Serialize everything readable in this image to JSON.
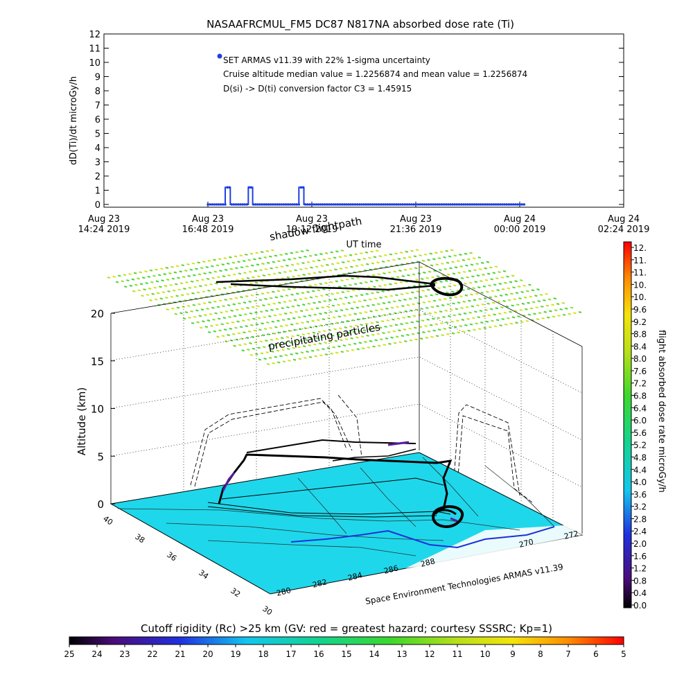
{
  "chart_data": [
    {
      "type": "line",
      "title": "NASAAFRCMUL_FM5 DC87 N817NA absorbed dose rate (Ti)",
      "ylabel": "dD(Ti)/dt microGy/h",
      "xlabel": "UT time",
      "ylim": [
        0,
        12
      ],
      "yticks": [
        "0",
        "1",
        "2",
        "3",
        "4",
        "5",
        "6",
        "7",
        "8",
        "9",
        "10",
        "11",
        "12"
      ],
      "xticks": [
        {
          "line1": "Aug 23",
          "line2": "14:24 2019",
          "t": 0
        },
        {
          "line1": "Aug 23",
          "line2": "16:48 2019",
          "t": 144
        },
        {
          "line1": "Aug 23",
          "line2": "19:12 2019",
          "t": 288
        },
        {
          "line1": "Aug 23",
          "line2": "21:36 2019",
          "t": 432
        },
        {
          "line1": "Aug 24",
          "line2": "00:00 2019",
          "t": 576
        },
        {
          "line1": "Aug 24",
          "line2": "02:24 2019",
          "t": 720
        }
      ],
      "xlim_minutes": [
        0,
        720
      ],
      "series": [
        {
          "name": "SET ARMAS v11.39 with 22% 1-sigma uncertainty",
          "color": "#1f3fe0",
          "points": [
            [
              144,
              0
            ],
            [
              156,
              0
            ],
            [
              168,
              0
            ],
            [
              168,
              1.2
            ],
            [
              175,
              1.2
            ],
            [
              175,
              0
            ],
            [
              200,
              0
            ],
            [
              200,
              1.2
            ],
            [
              206,
              1.2
            ],
            [
              206,
              0
            ],
            [
              270,
              0
            ],
            [
              270,
              1.2
            ],
            [
              277,
              1.2
            ],
            [
              277,
              0
            ],
            [
              320,
              0
            ],
            [
              380,
              0
            ],
            [
              440,
              0
            ],
            [
              500,
              0
            ],
            [
              560,
              0
            ],
            [
              582,
              0
            ]
          ]
        }
      ],
      "annotations": [
        "Cruise altitude median value = 1.2256874 and mean value = 1.2256874",
        "D(si) -> D(ti) conversion factor C3 = 1.45915"
      ]
    },
    {
      "type": "scatter",
      "title": "",
      "zlabel": "Altitude (km)",
      "zticks": [
        "0",
        "5",
        "10",
        "15",
        "20"
      ],
      "lat_ticks": [
        "40",
        "38",
        "36",
        "34",
        "32",
        "30"
      ],
      "lon_ticks": [
        "280",
        "282",
        "284",
        "286",
        "288",
        "270",
        "272"
      ],
      "labels": [
        "shadow flightpath",
        "precipitating particles"
      ],
      "credit": "Space Environment Technologies ARMAS v11.39"
    }
  ],
  "colorbar_right": {
    "label": "flight absorbed dose rate microGy/h",
    "ticks": [
      "0.0",
      "0.4",
      "0.8",
      "1.2",
      "1.6",
      "2.0",
      "2.4",
      "2.8",
      "3.2",
      "3.6",
      "4.0",
      "4.4",
      "4.8",
      "5.2",
      "5.6",
      "6.0",
      "6.4",
      "6.8",
      "7.2",
      "7.6",
      "8.0",
      "8.4",
      "8.8",
      "9.2",
      "9.6",
      "10.",
      "10.",
      "11.",
      "11.",
      "12."
    ],
    "range": [
      0,
      12.2
    ]
  },
  "colorbar_bottom": {
    "title": "Cutoff rigidity (Rc) >25 km (GV: red = greatest hazard; courtesy SSSRC; Kp=1)",
    "ticks": [
      "25",
      "24",
      "23",
      "22",
      "21",
      "20",
      "19",
      "18",
      "17",
      "16",
      "15",
      "14",
      "13",
      "12",
      "11",
      "10",
      "9",
      "8",
      "7",
      "6",
      "5"
    ]
  }
}
